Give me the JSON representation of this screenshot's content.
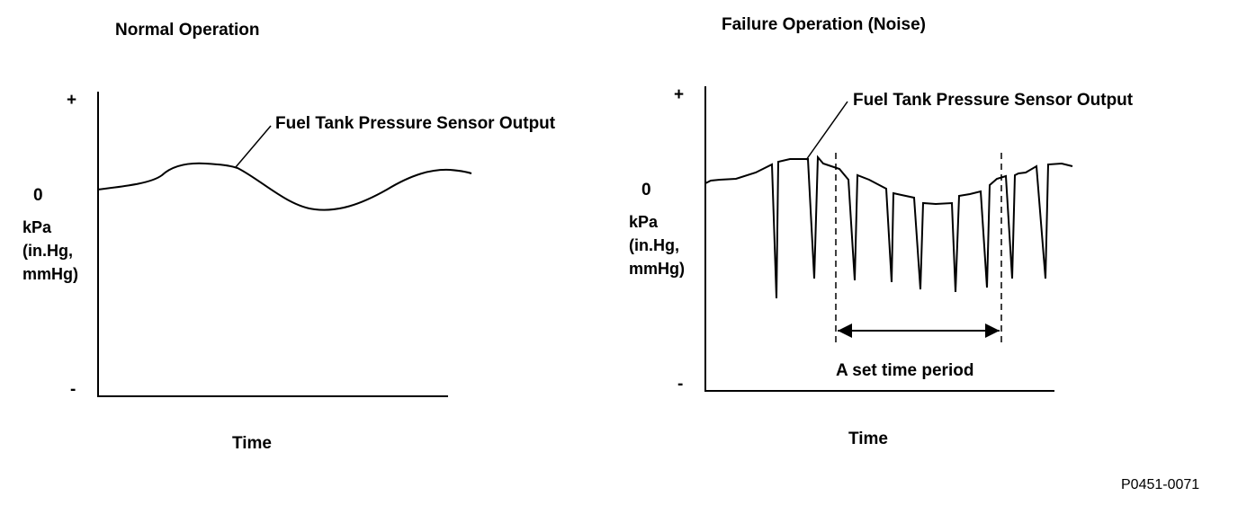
{
  "left_panel": {
    "title": "Normal Operation",
    "y_plus": "+",
    "y_zero": "0",
    "y_minus": "-",
    "y_unit": "kPa\n(in.Hg,\nmmHg)",
    "callout": "Fuel Tank Pressure Sensor Output",
    "x_label": "Time"
  },
  "right_panel": {
    "title": "Failure Operation (Noise)",
    "y_plus": "+",
    "y_zero": "0",
    "y_minus": "-",
    "y_unit": "kPa\n(in.Hg,\nmmHg)",
    "callout": "Fuel Tank Pressure Sensor Output",
    "period_label": "A set time period",
    "x_label": "Time"
  },
  "figure_id": "P0451-0071"
}
